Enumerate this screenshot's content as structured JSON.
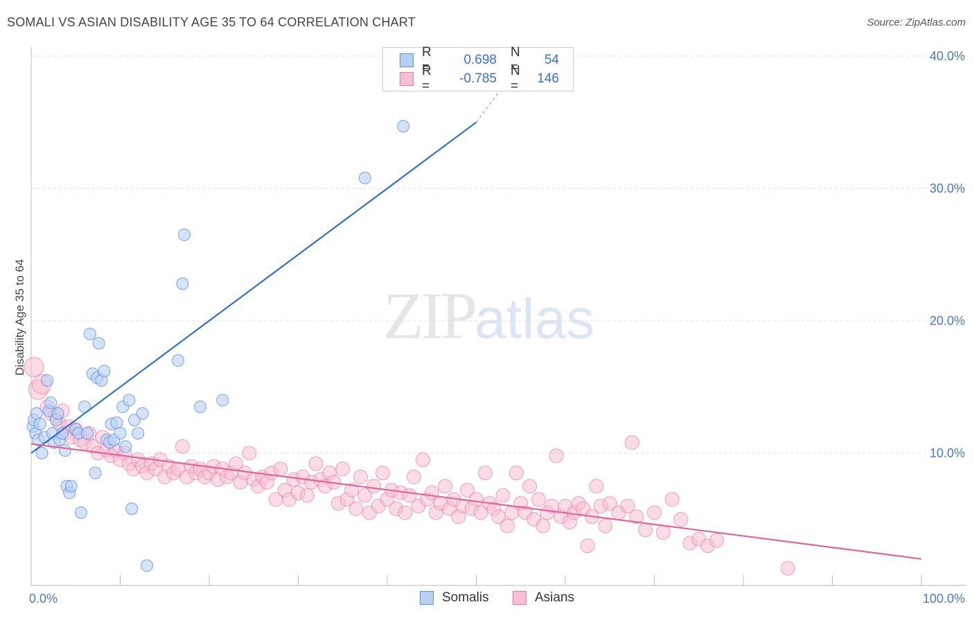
{
  "title": "SOMALI VS ASIAN DISABILITY AGE 35 TO 64 CORRELATION CHART",
  "source": "Source: ZipAtlas.com",
  "watermark": {
    "zip": "ZIP",
    "atlas": "atlas"
  },
  "colors": {
    "somali": "#5b8fe0",
    "somali_fill": "#b9d0f5",
    "asian": "#e87aa0",
    "asian_fill": "#f6bfd2",
    "somali_line": "#2f6fd0",
    "asian_line": "#e0669a"
  },
  "legend": {
    "rows": [
      {
        "r_label": "R =",
        "r_value": "0.698",
        "n_label": "N =",
        "n_value": "54"
      },
      {
        "r_label": "R =",
        "r_value": "-0.785",
        "n_label": "N =",
        "n_value": "146"
      }
    ]
  },
  "bottom_legend": {
    "somali": "Somalis",
    "asian": "Asians"
  },
  "chart_data": {
    "type": "scatter",
    "title": "SOMALI VS ASIAN DISABILITY AGE 35 TO 64 CORRELATION CHART",
    "xlabel": "",
    "ylabel": "Disability Age 35 to 64",
    "xlim": [
      0,
      100
    ],
    "ylim": [
      0,
      40
    ],
    "x_tick_labels": [
      "0.0%",
      "100.0%"
    ],
    "y_ticks": [
      10,
      20,
      30,
      40
    ],
    "y_tick_labels": [
      "10.0%",
      "20.0%",
      "30.0%",
      "40.0%"
    ],
    "series": [
      {
        "name": "Somalis",
        "r": 0.698,
        "n": 54,
        "trend": {
          "x": [
            0,
            50
          ],
          "y": [
            10.0,
            35.0
          ],
          "dashed_to": [
            55,
            39.5
          ]
        },
        "points": [
          [
            0.2,
            12.0
          ],
          [
            0.3,
            12.5
          ],
          [
            0.5,
            11.5
          ],
          [
            0.6,
            13.0
          ],
          [
            0.8,
            11.0
          ],
          [
            1.0,
            12.2
          ],
          [
            1.2,
            10.0
          ],
          [
            1.5,
            11.2
          ],
          [
            1.8,
            15.5
          ],
          [
            2.0,
            13.2
          ],
          [
            2.2,
            13.8
          ],
          [
            2.4,
            11.5
          ],
          [
            2.6,
            10.8
          ],
          [
            2.8,
            12.5
          ],
          [
            3.0,
            13.0
          ],
          [
            3.2,
            11.0
          ],
          [
            3.5,
            11.5
          ],
          [
            3.8,
            10.2
          ],
          [
            4.0,
            7.5
          ],
          [
            4.3,
            7.0
          ],
          [
            4.5,
            7.5
          ],
          [
            5.0,
            11.8
          ],
          [
            5.3,
            11.5
          ],
          [
            5.6,
            5.5
          ],
          [
            6.0,
            13.5
          ],
          [
            6.3,
            11.5
          ],
          [
            6.6,
            19.0
          ],
          [
            6.9,
            16.0
          ],
          [
            7.2,
            8.5
          ],
          [
            7.4,
            15.7
          ],
          [
            7.6,
            18.3
          ],
          [
            7.9,
            15.5
          ],
          [
            8.2,
            16.2
          ],
          [
            8.5,
            11.0
          ],
          [
            8.8,
            10.8
          ],
          [
            9.0,
            12.2
          ],
          [
            9.3,
            11.0
          ],
          [
            9.6,
            12.3
          ],
          [
            10.0,
            11.5
          ],
          [
            10.3,
            13.5
          ],
          [
            10.6,
            10.5
          ],
          [
            11.0,
            14.0
          ],
          [
            11.3,
            5.8
          ],
          [
            11.6,
            12.5
          ],
          [
            12.0,
            11.5
          ],
          [
            12.5,
            13.0
          ],
          [
            13.0,
            1.5
          ],
          [
            16.5,
            17.0
          ],
          [
            17.0,
            22.8
          ],
          [
            17.2,
            26.5
          ],
          [
            19.0,
            13.5
          ],
          [
            21.5,
            14.0
          ],
          [
            37.5,
            30.8
          ],
          [
            41.8,
            34.7
          ]
        ]
      },
      {
        "name": "Asians",
        "r": -0.785,
        "n": 146,
        "trend": {
          "x": [
            0,
            100
          ],
          "y": [
            10.7,
            2.0
          ]
        },
        "points": [
          [
            0.3,
            16.5
          ],
          [
            0.8,
            14.8
          ],
          [
            1.2,
            15.2
          ],
          [
            1.8,
            13.5
          ],
          [
            2.2,
            13.0
          ],
          [
            2.8,
            12.8
          ],
          [
            3.2,
            12.2
          ],
          [
            3.5,
            13.2
          ],
          [
            3.8,
            11.5
          ],
          [
            4.2,
            12.0
          ],
          [
            4.5,
            11.2
          ],
          [
            5.0,
            11.8
          ],
          [
            5.5,
            11.0
          ],
          [
            6.0,
            10.8
          ],
          [
            6.5,
            11.5
          ],
          [
            7.0,
            10.5
          ],
          [
            7.5,
            10.0
          ],
          [
            8.0,
            11.2
          ],
          [
            8.5,
            10.2
          ],
          [
            9.0,
            9.8
          ],
          [
            9.5,
            10.2
          ],
          [
            10.0,
            9.5
          ],
          [
            10.5,
            10.0
          ],
          [
            11.0,
            9.2
          ],
          [
            11.5,
            8.8
          ],
          [
            12.0,
            9.5
          ],
          [
            12.5,
            9.0
          ],
          [
            13.0,
            8.5
          ],
          [
            13.5,
            9.2
          ],
          [
            14.0,
            8.8
          ],
          [
            14.5,
            9.5
          ],
          [
            15.0,
            8.2
          ],
          [
            15.5,
            9.0
          ],
          [
            16.0,
            8.5
          ],
          [
            16.5,
            8.8
          ],
          [
            17.0,
            10.5
          ],
          [
            17.5,
            8.2
          ],
          [
            18.0,
            9.0
          ],
          [
            18.5,
            8.5
          ],
          [
            19.0,
            8.8
          ],
          [
            19.5,
            8.2
          ],
          [
            20.0,
            8.5
          ],
          [
            20.5,
            9.0
          ],
          [
            21.0,
            8.0
          ],
          [
            21.5,
            8.8
          ],
          [
            22.0,
            8.2
          ],
          [
            22.5,
            8.5
          ],
          [
            23.0,
            9.2
          ],
          [
            23.5,
            7.8
          ],
          [
            24.0,
            8.5
          ],
          [
            24.5,
            10.0
          ],
          [
            25.0,
            8.0
          ],
          [
            25.5,
            7.5
          ],
          [
            26.0,
            8.2
          ],
          [
            26.5,
            7.8
          ],
          [
            27.0,
            8.5
          ],
          [
            27.5,
            6.5
          ],
          [
            28.0,
            8.8
          ],
          [
            28.5,
            7.2
          ],
          [
            29.0,
            6.5
          ],
          [
            29.5,
            8.0
          ],
          [
            30.0,
            7.0
          ],
          [
            30.5,
            8.2
          ],
          [
            31.0,
            6.8
          ],
          [
            31.5,
            7.8
          ],
          [
            32.0,
            9.2
          ],
          [
            32.5,
            8.0
          ],
          [
            33.0,
            7.5
          ],
          [
            33.5,
            8.5
          ],
          [
            34.0,
            7.8
          ],
          [
            34.5,
            6.2
          ],
          [
            35.0,
            8.8
          ],
          [
            35.5,
            6.5
          ],
          [
            36.0,
            7.2
          ],
          [
            36.5,
            5.8
          ],
          [
            37.0,
            8.2
          ],
          [
            37.5,
            6.8
          ],
          [
            38.0,
            5.5
          ],
          [
            38.5,
            7.5
          ],
          [
            39.0,
            6.0
          ],
          [
            39.5,
            8.5
          ],
          [
            40.0,
            6.5
          ],
          [
            40.5,
            7.2
          ],
          [
            41.0,
            5.8
          ],
          [
            41.5,
            7.0
          ],
          [
            42.0,
            5.5
          ],
          [
            42.5,
            6.8
          ],
          [
            43.0,
            8.2
          ],
          [
            43.5,
            6.0
          ],
          [
            44.0,
            9.5
          ],
          [
            44.5,
            6.5
          ],
          [
            45.0,
            7.0
          ],
          [
            45.5,
            5.5
          ],
          [
            46.0,
            6.2
          ],
          [
            46.5,
            7.5
          ],
          [
            47.0,
            5.8
          ],
          [
            47.5,
            6.5
          ],
          [
            48.0,
            5.2
          ],
          [
            48.5,
            6.0
          ],
          [
            49.0,
            7.2
          ],
          [
            49.5,
            5.8
          ],
          [
            50.0,
            6.5
          ],
          [
            50.5,
            5.5
          ],
          [
            51.0,
            8.5
          ],
          [
            51.5,
            6.2
          ],
          [
            52.0,
            5.8
          ],
          [
            52.5,
            5.2
          ],
          [
            53.0,
            6.8
          ],
          [
            53.5,
            4.5
          ],
          [
            54.0,
            5.5
          ],
          [
            54.5,
            8.5
          ],
          [
            55.0,
            6.2
          ],
          [
            55.5,
            5.5
          ],
          [
            56.0,
            7.5
          ],
          [
            56.5,
            5.0
          ],
          [
            57.0,
            6.5
          ],
          [
            57.5,
            4.5
          ],
          [
            58.0,
            5.5
          ],
          [
            58.5,
            6.0
          ],
          [
            59.0,
            9.8
          ],
          [
            59.5,
            5.2
          ],
          [
            60.0,
            6.0
          ],
          [
            60.5,
            4.8
          ],
          [
            61.0,
            5.5
          ],
          [
            61.5,
            6.2
          ],
          [
            62.0,
            5.8
          ],
          [
            62.5,
            3.0
          ],
          [
            63.0,
            5.2
          ],
          [
            63.5,
            7.5
          ],
          [
            64.0,
            6.0
          ],
          [
            64.5,
            4.5
          ],
          [
            65.0,
            6.2
          ],
          [
            66.0,
            5.5
          ],
          [
            67.0,
            6.0
          ],
          [
            67.5,
            10.8
          ],
          [
            68.0,
            5.2
          ],
          [
            69.0,
            4.2
          ],
          [
            70.0,
            5.5
          ],
          [
            71.0,
            4.0
          ],
          [
            72.0,
            6.5
          ],
          [
            73.0,
            5.0
          ],
          [
            74.0,
            3.2
          ],
          [
            75.0,
            3.5
          ],
          [
            76.0,
            3.0
          ],
          [
            77.0,
            3.4
          ],
          [
            85.0,
            1.3
          ]
        ]
      }
    ]
  }
}
